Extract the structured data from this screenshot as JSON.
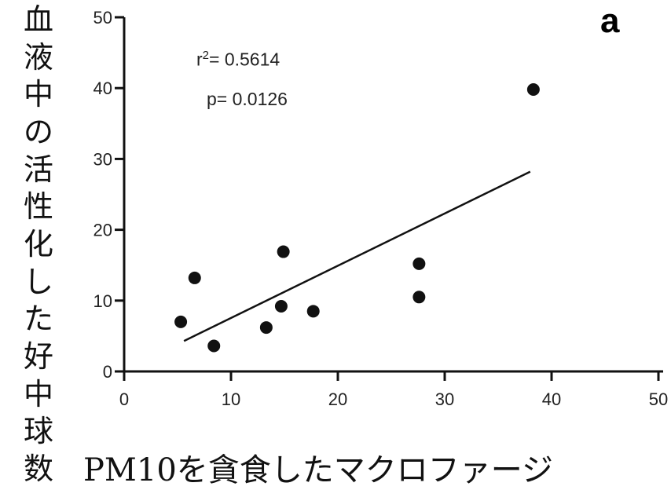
{
  "chart_data": {
    "type": "scatter",
    "panel_label": "a",
    "ylabel": "血液中の活性化した好中球数",
    "xlabel": "PM10を貪食したマクロファージ",
    "xlim": [
      0,
      50
    ],
    "ylim": [
      0,
      50
    ],
    "xticks": [
      0,
      10,
      20,
      30,
      40,
      50
    ],
    "yticks": [
      0,
      10,
      20,
      30,
      40,
      50
    ],
    "points": [
      {
        "x": 5.3,
        "y": 7.0
      },
      {
        "x": 6.6,
        "y": 13.2
      },
      {
        "x": 8.4,
        "y": 3.6
      },
      {
        "x": 13.3,
        "y": 6.2
      },
      {
        "x": 14.7,
        "y": 9.2
      },
      {
        "x": 14.9,
        "y": 16.9
      },
      {
        "x": 17.7,
        "y": 8.5
      },
      {
        "x": 27.6,
        "y": 15.2
      },
      {
        "x": 27.6,
        "y": 10.5
      },
      {
        "x": 38.3,
        "y": 39.8
      }
    ],
    "fit_line": {
      "x": [
        5.6,
        38.0
      ],
      "y": [
        4.3,
        28.2
      ]
    },
    "r2_label": "= 0.5614",
    "p_label": "p= 0.0126"
  }
}
